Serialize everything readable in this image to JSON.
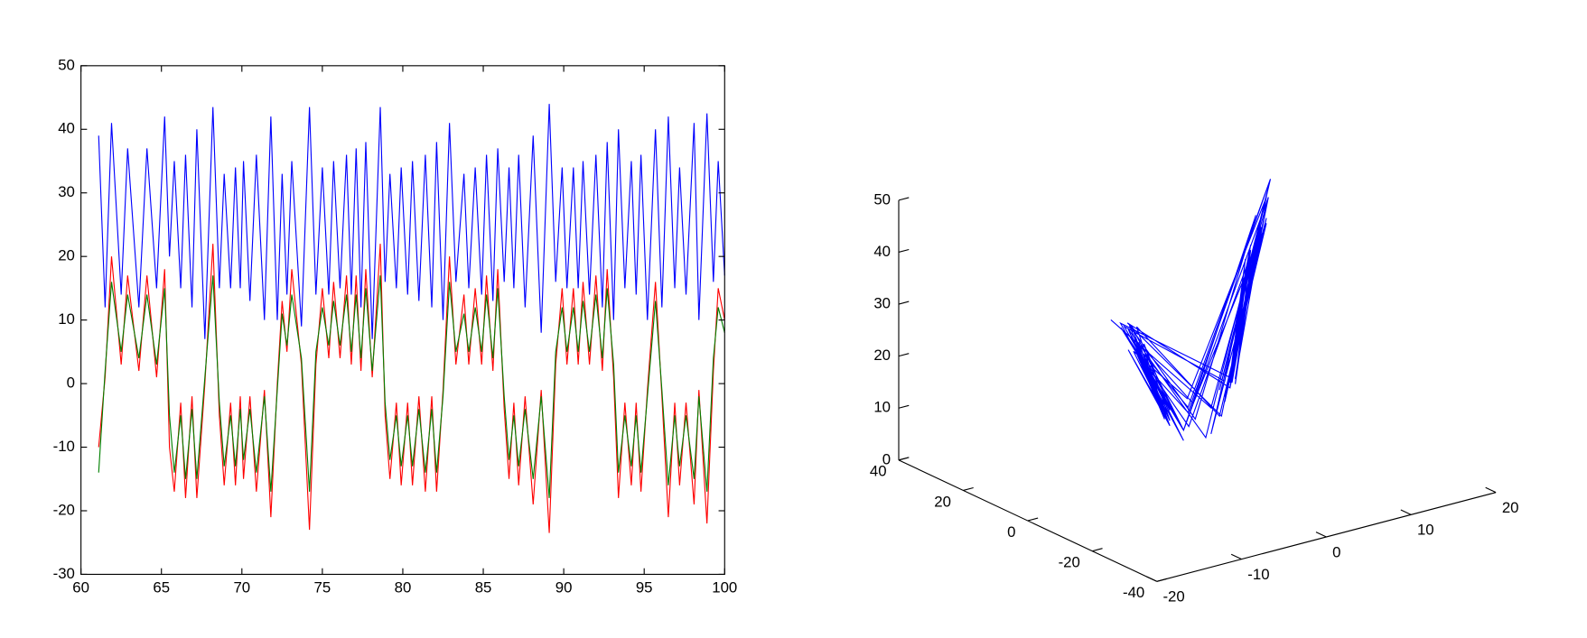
{
  "chart_data": [
    {
      "type": "line",
      "x": [
        61.1,
        61.5,
        61.9,
        62.5,
        62.9,
        63.6,
        64.1,
        64.7,
        65.2,
        65.5,
        65.8,
        66.2,
        66.5,
        66.9,
        67.2,
        67.7,
        68.2,
        68.6,
        68.9,
        69.3,
        69.6,
        69.9,
        70.1,
        70.5,
        70.9,
        71.4,
        71.8,
        72.2,
        72.5,
        72.8,
        73.1,
        73.7,
        74.2,
        74.6,
        75.0,
        75.4,
        75.7,
        76.1,
        76.5,
        76.8,
        77.1,
        77.4,
        77.7,
        78.1,
        78.6,
        78.9,
        79.2,
        79.6,
        79.9,
        80.3,
        80.6,
        81.0,
        81.4,
        81.8,
        82.1,
        82.5,
        82.9,
        83.3,
        83.8,
        84.1,
        84.5,
        84.9,
        85.2,
        85.6,
        85.9,
        86.3,
        86.6,
        86.9,
        87.2,
        87.6,
        88.1,
        88.6,
        89.1,
        89.5,
        89.9,
        90.2,
        90.6,
        90.9,
        91.2,
        91.6,
        92.0,
        92.4,
        92.7,
        93.1,
        93.4,
        93.8,
        94.2,
        94.5,
        94.8,
        95.2,
        95.7,
        96.1,
        96.5,
        96.9,
        97.2,
        97.6,
        98.1,
        98.4,
        98.9,
        99.3,
        99.6,
        100
      ],
      "series": [
        {
          "color": "#0000ff",
          "values": [
            39,
            12,
            41,
            14,
            37,
            12,
            37,
            15,
            42,
            20,
            35,
            15,
            36,
            12,
            40,
            7,
            43.5,
            15,
            33,
            15,
            34,
            15,
            35,
            13,
            36,
            10,
            42,
            10,
            33,
            14,
            35,
            9,
            43.5,
            14,
            34,
            14,
            35,
            15,
            36,
            14,
            37,
            12,
            38,
            7,
            43.5,
            16,
            33,
            15,
            34,
            14,
            35,
            13,
            36,
            12,
            38,
            10,
            41,
            16,
            33,
            15,
            34,
            14,
            36,
            13,
            37,
            16,
            34,
            15,
            36,
            12,
            39,
            8,
            44,
            16,
            34,
            15,
            34,
            15,
            35,
            14,
            36,
            12,
            38,
            10,
            40,
            15,
            35,
            14,
            36,
            10,
            40,
            12,
            42,
            15,
            34,
            14,
            41,
            10,
            42.5,
            16,
            35,
            17
          ]
        },
        {
          "color": "#ff0000",
          "values": [
            -10,
            1,
            20,
            3,
            17,
            2,
            17,
            1,
            18,
            -10,
            -17,
            -3,
            -18,
            -2,
            -18,
            0,
            22,
            -5,
            -16,
            -3,
            -16,
            -2,
            -15,
            -2,
            -17,
            -1,
            -21,
            0,
            13,
            5,
            18,
            3,
            -23,
            3,
            15,
            4,
            16,
            4,
            17,
            3,
            17,
            2,
            18,
            1,
            22,
            -5,
            -15,
            -3,
            -16,
            -3,
            -16,
            -2,
            -17,
            -2,
            -17,
            -1,
            20,
            3,
            14,
            3,
            15,
            3,
            17,
            2,
            18,
            -4,
            -15,
            -3,
            -16,
            -2,
            -19,
            -1,
            -23.5,
            3,
            15,
            3,
            15,
            3,
            16,
            3,
            17,
            2,
            18,
            1,
            -18,
            -3,
            -16,
            -3,
            -17,
            -1,
            16,
            -2,
            -21,
            -3,
            -16,
            -3,
            -19,
            -1,
            -22,
            2,
            15,
            10
          ]
        },
        {
          "color": "#008000",
          "values": [
            -14,
            2,
            16,
            5,
            14,
            4,
            14,
            3,
            15,
            -5,
            -14,
            -5,
            -15,
            -4,
            -15,
            1,
            17,
            -3,
            -13,
            -5,
            -13,
            -4,
            -12,
            -4,
            -14,
            -2,
            -17,
            -1,
            11,
            6,
            14,
            4,
            -17,
            5,
            12,
            6,
            13,
            6,
            14,
            5,
            14,
            4,
            15,
            2,
            17,
            -3,
            -12,
            -5,
            -13,
            -5,
            -13,
            -4,
            -14,
            -4,
            -14,
            -2,
            16,
            5,
            11,
            5,
            12,
            5,
            14,
            4,
            15,
            -2,
            -12,
            -5,
            -13,
            -4,
            -15,
            -2,
            -18,
            5,
            12,
            5,
            12,
            5,
            13,
            5,
            14,
            4,
            15,
            3,
            -14,
            -5,
            -13,
            -5,
            -14,
            -2,
            13,
            -1,
            -16,
            -5,
            -13,
            -5,
            -15,
            -2,
            -17,
            4,
            12,
            8
          ]
        }
      ],
      "xlim": [
        60,
        100
      ],
      "xticks": [
        60,
        65,
        70,
        75,
        80,
        85,
        90,
        95,
        100
      ],
      "ylim": [
        -30,
        50
      ],
      "yticks": [
        -30,
        -20,
        -10,
        0,
        10,
        20,
        30,
        40,
        50
      ]
    },
    {
      "type": "line3d",
      "color": "#0000ff",
      "xlim": [
        -20,
        20
      ],
      "xticks": [
        -20,
        -10,
        0,
        10,
        20
      ],
      "ylim": [
        -40,
        40
      ],
      "yticks": [
        -40,
        -20,
        0,
        20,
        40
      ],
      "zlim": [
        0,
        50
      ],
      "zticks": [
        0,
        10,
        20,
        30,
        40,
        50
      ]
    }
  ]
}
